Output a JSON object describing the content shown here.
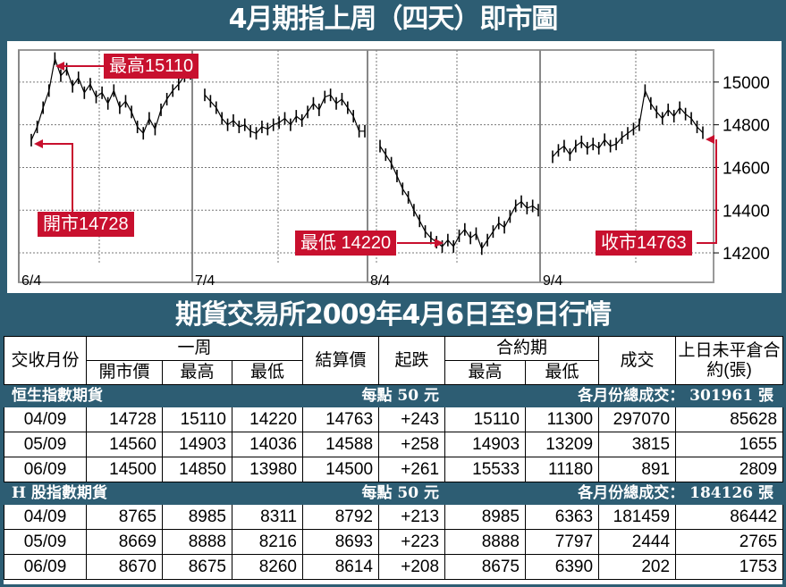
{
  "header": {
    "title": "4月期指上周（四天）即市圖"
  },
  "chart_data": {
    "type": "line",
    "ylim": [
      14150,
      15150
    ],
    "y_ticks": [
      15000,
      14800,
      14600,
      14400,
      14200
    ],
    "day_labels": [
      "6/4",
      "7/4",
      "8/4",
      "9/4"
    ],
    "days": [
      [
        14728,
        14790,
        14880,
        14960,
        15110,
        15030,
        15060,
        14980,
        15020,
        14950,
        14990,
        14930,
        14950,
        14900,
        14960,
        14880,
        14910,
        14860,
        14790,
        14760,
        14830,
        14780,
        14870,
        14920,
        14960,
        14990,
        15030,
        15040
      ],
      [
        14940,
        14910,
        14880,
        14830,
        14800,
        14820,
        14790,
        14800,
        14770,
        14760,
        14790,
        14780,
        14800,
        14810,
        14830,
        14800,
        14840,
        14820,
        14860,
        14900,
        14870,
        14930,
        14940,
        14900,
        14920,
        14880,
        14840,
        14770,
        14770
      ],
      [
        14700,
        14660,
        14620,
        14560,
        14500,
        14460,
        14400,
        14350,
        14300,
        14270,
        14250,
        14230,
        14260,
        14230,
        14280,
        14310,
        14270,
        14290,
        14220,
        14260,
        14300,
        14340,
        14320,
        14370,
        14420,
        14440,
        14410,
        14420,
        14400
      ],
      [
        14650,
        14680,
        14700,
        14660,
        14700,
        14720,
        14690,
        14710,
        14690,
        14730,
        14700,
        14710,
        14740,
        14760,
        14780,
        14800,
        14960,
        14900,
        14860,
        14830,
        14870,
        14840,
        14880,
        14850,
        14830,
        14790,
        14763
      ]
    ],
    "annotations": {
      "high": "最高15110",
      "low": "最低 14220",
      "open": "開市14728",
      "close": "收市14763"
    }
  },
  "section_title": "期貨交易所2009年4月6日至9日行情",
  "table": {
    "headers": {
      "month": "交收月份",
      "week": "一周",
      "open": "開市價",
      "high": "最高",
      "low": "最低",
      "settle": "結算價",
      "change": "起跌",
      "contract": "合約期",
      "c_high": "最高",
      "c_low": "最低",
      "volume": "成交",
      "oi": "上日未平倉合約(張)"
    },
    "hsi": {
      "name": "恒生指數期貨",
      "unit": "每點 50 元",
      "total": "各月份總成交： 301961 張",
      "rows": [
        [
          "04/09",
          "14728",
          "15110",
          "14220",
          "14763",
          "+243",
          "15110",
          "11300",
          "297070",
          "85628"
        ],
        [
          "05/09",
          "14560",
          "14903",
          "14036",
          "14588",
          "+258",
          "14903",
          "13209",
          "3815",
          "1655"
        ],
        [
          "06/09",
          "14500",
          "14850",
          "13980",
          "14500",
          "+261",
          "15533",
          "11180",
          "891",
          "2809"
        ]
      ]
    },
    "hshare": {
      "name": "H 股指數期貨",
      "unit": "每點 50 元",
      "total": "各月份總成交： 184126 張",
      "rows": [
        [
          "04/09",
          "8765",
          "8985",
          "8311",
          "8792",
          "+213",
          "8985",
          "6363",
          "181459",
          "86442"
        ],
        [
          "05/09",
          "8669",
          "8888",
          "8216",
          "8693",
          "+223",
          "8888",
          "7797",
          "2444",
          "2765"
        ],
        [
          "06/09",
          "8670",
          "8675",
          "8260",
          "8614",
          "+208",
          "8675",
          "6390",
          "202",
          "1753"
        ]
      ]
    }
  },
  "colors": {
    "banner": "#2d5d73",
    "callout": "#c8102e"
  }
}
